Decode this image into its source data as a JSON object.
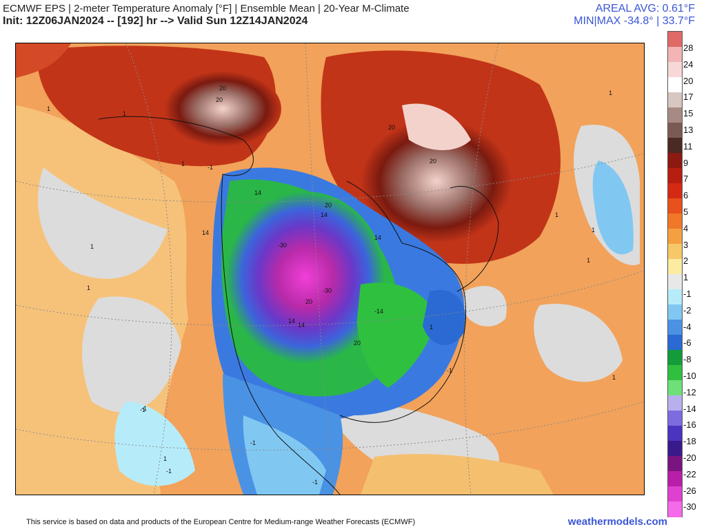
{
  "header": {
    "title": "ECMWF EPS | 2-meter Temperature Anomaly [°F] | Ensemble Mean | 20-Year M-Climate",
    "subtitle": "Init: 12Z06JAN2024 -- [192] hr --> Valid Sun 12Z14JAN2024",
    "areal_avg": "AREAL AVG: 0.61°F",
    "min_max": "MIN|MAX -34.8° | 33.7°F"
  },
  "colorbar": {
    "labels": [
      "28",
      "24",
      "20",
      "17",
      "15",
      "13",
      "11",
      "9",
      "7",
      "6",
      "5",
      "4",
      "3",
      "2",
      "1",
      "-1",
      "-2",
      "-4",
      "-6",
      "-8",
      "-10",
      "-12",
      "-14",
      "-16",
      "-18",
      "-20",
      "-22",
      "-26",
      "-30"
    ],
    "colors": [
      "#e06a66",
      "#f2b4b4",
      "#f7d8d6",
      "#ffffff",
      "#d8c6c2",
      "#a88a84",
      "#7c5a54",
      "#4a2a22",
      "#8c1a10",
      "#b51e10",
      "#d42a14",
      "#e8501c",
      "#f07828",
      "#f5a040",
      "#f8c868",
      "#fbeca0",
      "#e8e8e8",
      "#b6ecfa",
      "#80c8f2",
      "#4a92e4",
      "#2a6ad2",
      "#149c3a",
      "#30c040",
      "#6ee078",
      "#b8b0ee",
      "#7c6ce0",
      "#4c34c0",
      "#3a1a8a",
      "#7a1480",
      "#b81ea8",
      "#e040d0",
      "#f46ae8"
    ]
  },
  "map": {
    "contour_labels": [
      "1",
      "1",
      "1",
      "1",
      "1",
      "1",
      "1",
      "-1",
      "-1",
      "-1",
      "-1",
      "1",
      "1",
      "20",
      "20",
      "20",
      "20",
      "20",
      "14",
      "14",
      "14",
      "14",
      "14",
      "-30",
      "-30",
      "20",
      "20",
      "-14",
      "-1",
      "-1",
      "-1",
      "1",
      "1",
      "1",
      "14"
    ]
  },
  "footer": {
    "disclaimer": "This service is based on data and products of the European Centre for Medium-range Weather Forecasts (ECMWF)",
    "site": "weathermodels.com"
  }
}
